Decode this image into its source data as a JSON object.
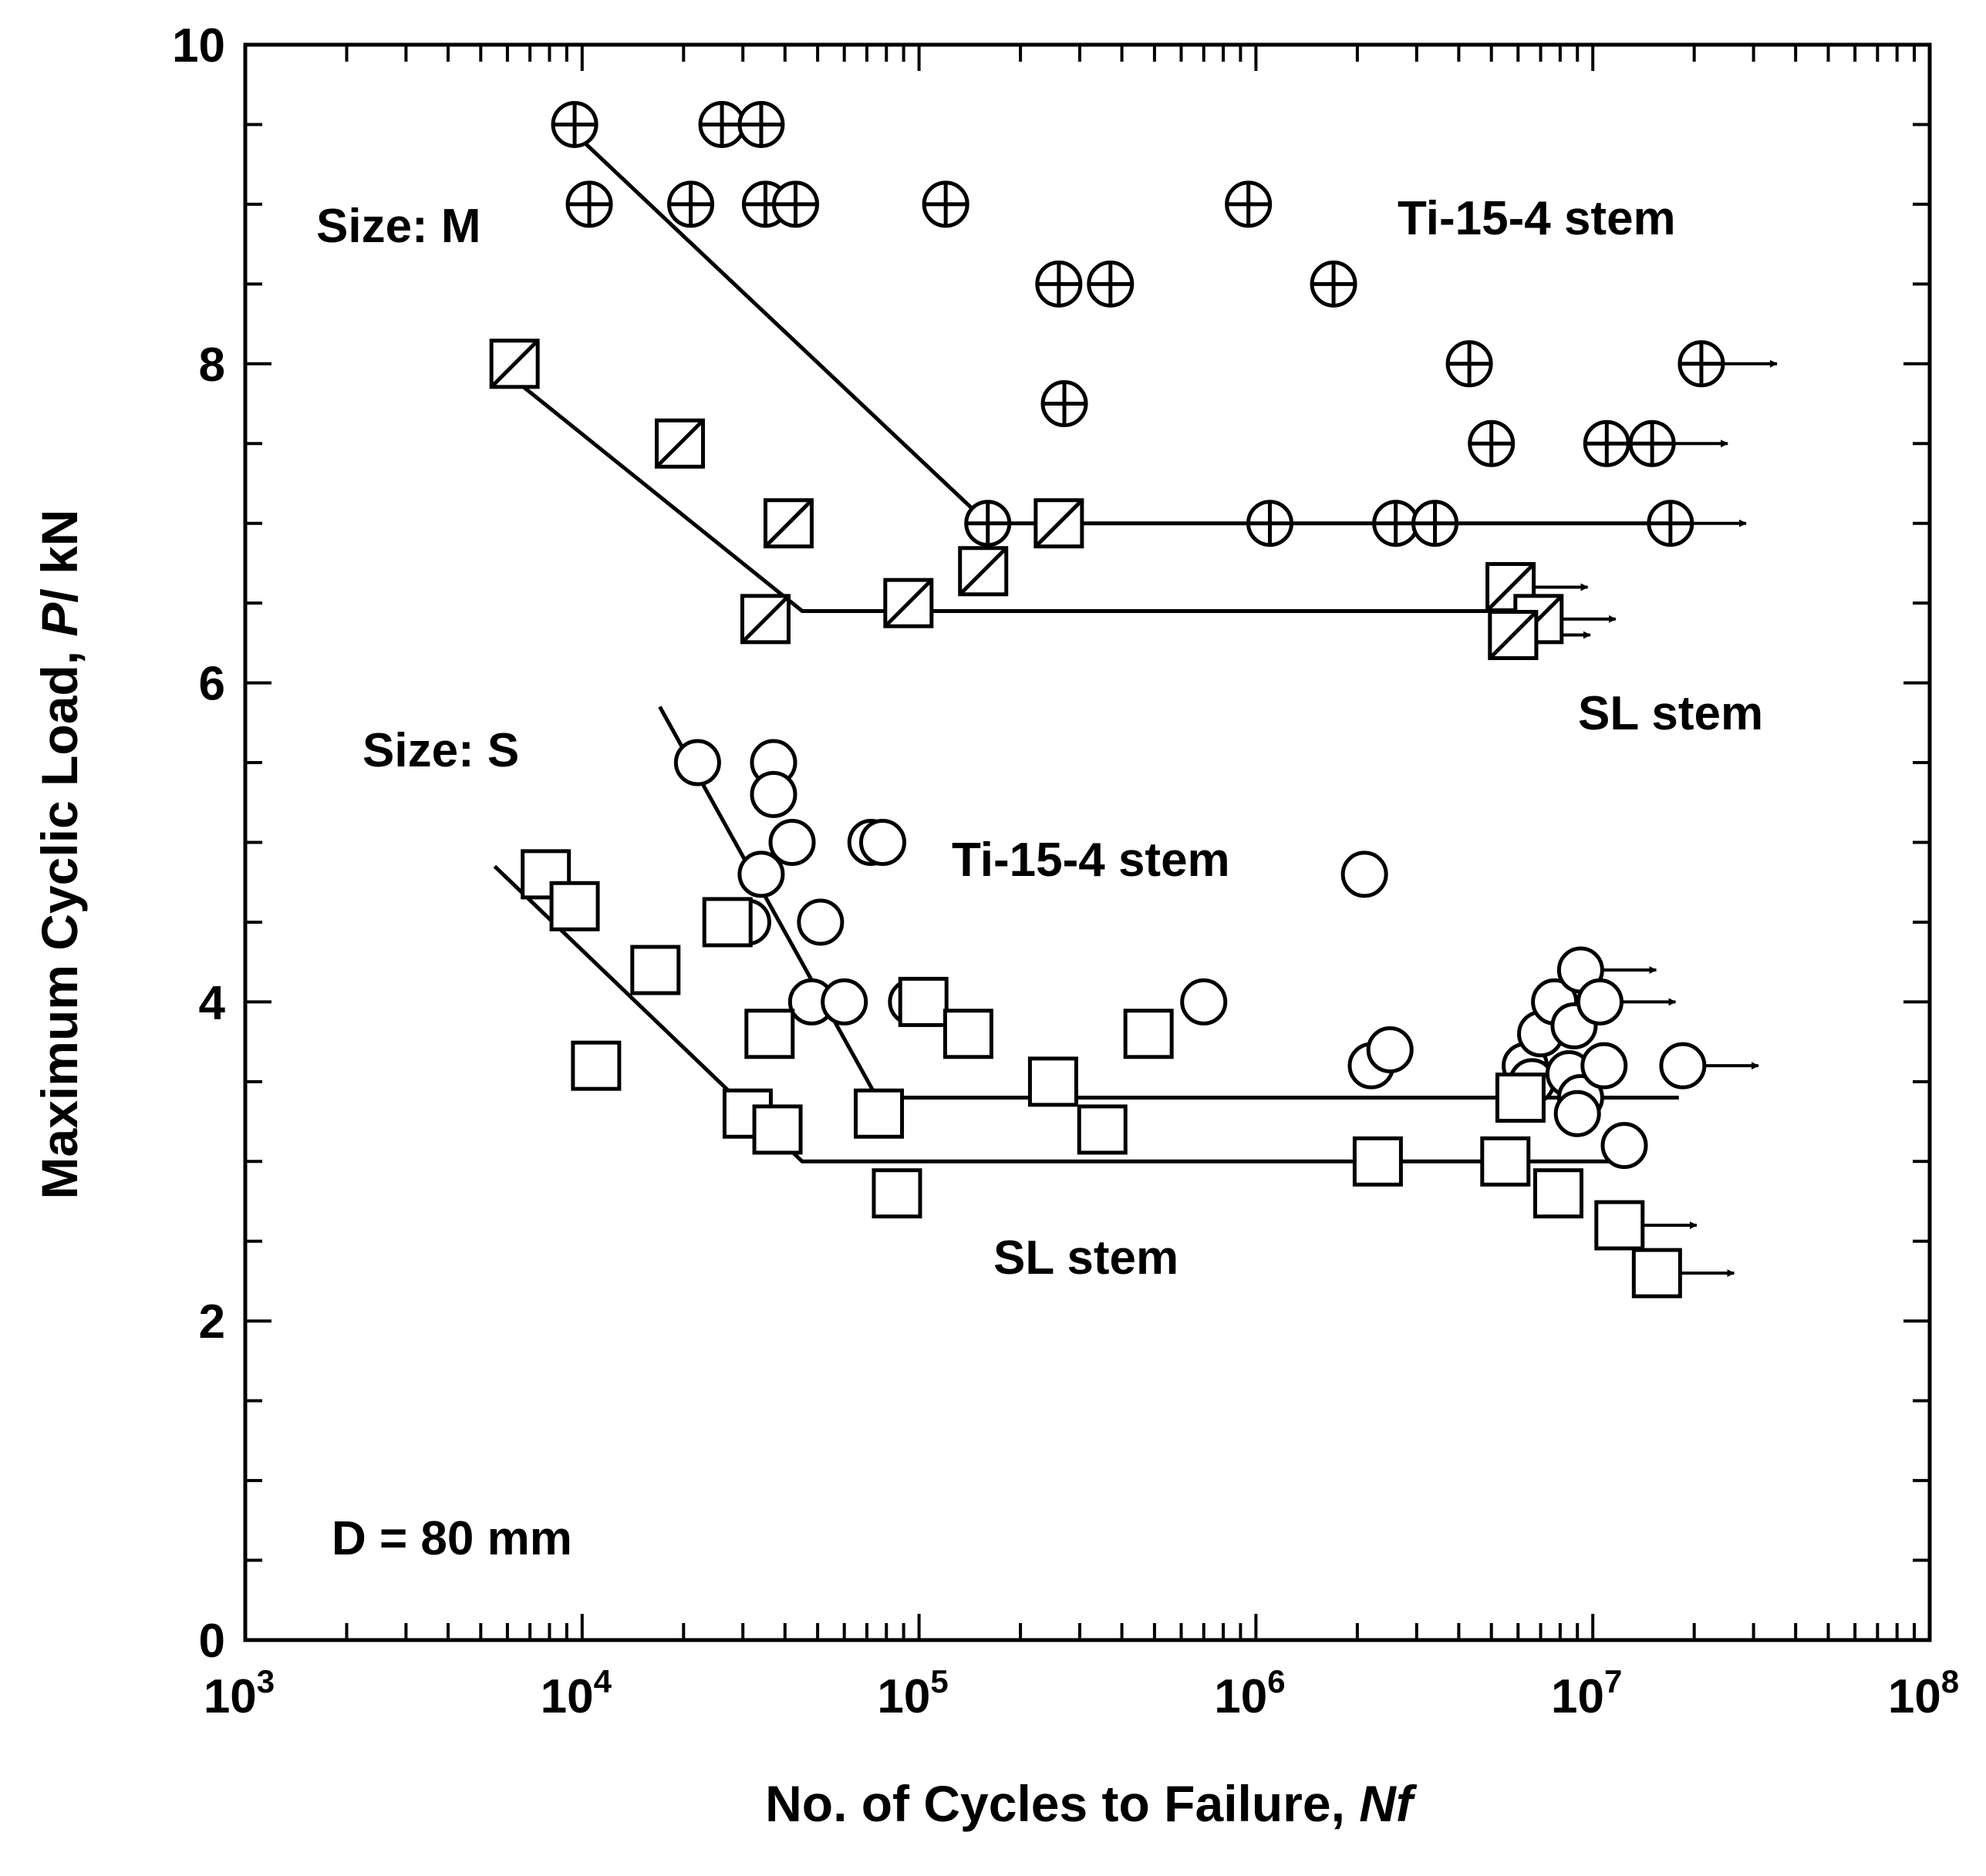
{
  "chart_data": {
    "type": "scatter",
    "title": "",
    "xlabel": "No. of Cycles to Failure, ",
    "xlabel_italic": "Nf",
    "ylabel": "Maximum Cyclic Load, ",
    "ylabel_italic": "P",
    "ylabel_unit": "/ kN",
    "xscale": "log",
    "xlim": [
      1000,
      100000000
    ],
    "ylim": [
      0,
      10
    ],
    "x_tick_exponents": [
      "3",
      "4",
      "5",
      "6",
      "7",
      "8"
    ],
    "x_tick_base": "10",
    "y_ticks": [
      0,
      2,
      4,
      6,
      8,
      10
    ],
    "y_tick_labels": [
      "0",
      "2",
      "4",
      "6",
      "8",
      "10"
    ],
    "annotations": {
      "size_m": "Size: M",
      "size_s": "Size: S",
      "ti_m": "Ti-15-4 stem",
      "sl_m": "SL stem",
      "ti_s": "Ti-15-4 stem",
      "sl_s": "SL stem",
      "diameter": "D = 80 mm"
    },
    "series": [
      {
        "name": "Size M, Ti-15-4 stem",
        "marker": "circle-plus",
        "points": [
          [
            9500,
            9.5
          ],
          [
            26000,
            9.5
          ],
          [
            34000,
            9.5
          ],
          [
            10500,
            9.0
          ],
          [
            21000,
            9.0
          ],
          [
            35000,
            9.0
          ],
          [
            43000,
            9.0
          ],
          [
            120000,
            9.0
          ],
          [
            950000,
            9.0
          ],
          [
            260000,
            8.5
          ],
          [
            370000,
            8.5
          ],
          [
            1700000,
            8.5
          ],
          [
            270000,
            7.75
          ],
          [
            4300000,
            8.0
          ],
          [
            5000000,
            7.5
          ],
          [
            11000000,
            7.5
          ],
          [
            160000,
            7.0
          ],
          [
            1100000,
            7.0
          ],
          [
            2600000,
            7.0
          ],
          [
            3400000,
            7.0
          ]
        ],
        "runouts": [
          [
            21000000,
            8.0
          ],
          [
            15000000,
            7.5
          ],
          [
            17000000,
            7.0
          ]
        ],
        "fit_line": [
          [
            10000,
            9.4
          ],
          [
            160000,
            7.0
          ],
          [
            17000000,
            7.0
          ]
        ]
      },
      {
        "name": "Size M, SL stem",
        "marker": "square-slash",
        "points": [
          [
            6300,
            8.0
          ],
          [
            19500,
            7.5
          ],
          [
            41000,
            7.0
          ],
          [
            35000,
            6.4
          ],
          [
            93000,
            6.5
          ],
          [
            155000,
            6.7
          ],
          [
            260000,
            7.0
          ],
          [
            5800000,
            6.3
          ]
        ],
        "runouts": [
          [
            5700000,
            6.6
          ],
          [
            6900000,
            6.4
          ],
          [
            5800000,
            6.3
          ]
        ],
        "fit_line": [
          [
            6300,
            7.9
          ],
          [
            45000,
            6.45
          ],
          [
            6000000,
            6.45
          ]
        ]
      },
      {
        "name": "Size S, Ti-15-4 stem",
        "marker": "circle",
        "points": [
          [
            22000,
            5.5
          ],
          [
            37000,
            5.5
          ],
          [
            37000,
            5.3
          ],
          [
            42000,
            5.0
          ],
          [
            34000,
            4.8
          ],
          [
            31000,
            4.5
          ],
          [
            51000,
            4.5
          ],
          [
            48000,
            4.0
          ],
          [
            60000,
            4.0
          ],
          [
            72000,
            5.0
          ],
          [
            78000,
            5.0
          ],
          [
            95000,
            4.0
          ],
          [
            700000,
            4.0
          ],
          [
            2100000,
            4.8
          ],
          [
            2200000,
            3.6
          ],
          [
            2500000,
            3.7
          ],
          [
            6300000,
            3.6
          ],
          [
            6600000,
            3.5
          ],
          [
            7000000,
            3.8
          ],
          [
            7700000,
            4.0
          ],
          [
            8500000,
            3.55
          ],
          [
            8800000,
            3.85
          ],
          [
            9200000,
            3.4
          ],
          [
            9000000,
            3.3
          ],
          [
            10800000,
            3.6
          ],
          [
            12400000,
            3.1
          ]
        ],
        "runouts": [
          [
            9200000,
            4.2
          ],
          [
            10500000,
            4.0
          ],
          [
            18500000,
            3.6
          ]
        ],
        "fit_line": [
          [
            17000,
            5.85
          ],
          [
            75000,
            3.4
          ],
          [
            18000000,
            3.4
          ]
        ]
      },
      {
        "name": "Size S, SL stem",
        "marker": "square",
        "points": [
          [
            7800,
            4.8
          ],
          [
            9500,
            4.6
          ],
          [
            11000,
            3.6
          ],
          [
            16500,
            4.2
          ],
          [
            27000,
            4.5
          ],
          [
            31000,
            3.3
          ],
          [
            36000,
            3.8
          ],
          [
            38000,
            3.2
          ],
          [
            76000,
            3.3
          ],
          [
            86000,
            2.8
          ],
          [
            103000,
            4.0
          ],
          [
            140000,
            3.8
          ],
          [
            250000,
            3.5
          ],
          [
            350000,
            3.2
          ],
          [
            480000,
            3.8
          ],
          [
            2300000,
            3.0
          ],
          [
            5500000,
            3.0
          ],
          [
            6100000,
            3.4
          ],
          [
            7900000,
            2.8
          ]
        ],
        "runouts": [
          [
            12000000,
            2.6
          ],
          [
            15500000,
            2.3
          ]
        ],
        "fit_line": [
          [
            5500,
            4.85
          ],
          [
            45000,
            3.0
          ],
          [
            12000000,
            3.0
          ]
        ]
      }
    ]
  }
}
